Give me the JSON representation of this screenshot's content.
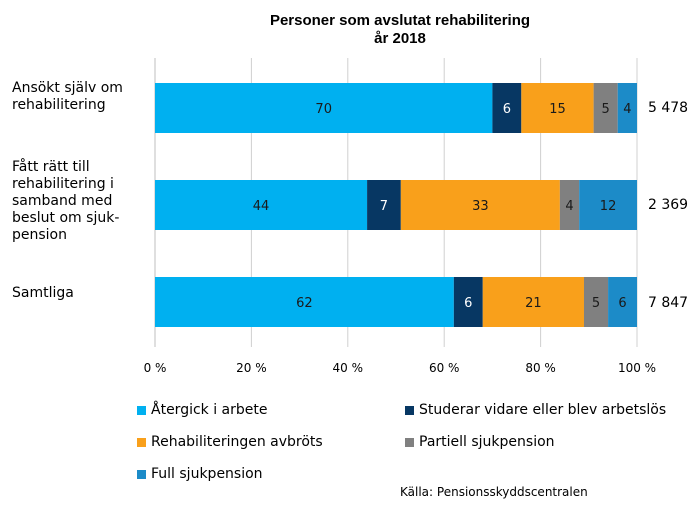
{
  "chart_data": {
    "type": "bar",
    "orientation": "horizontal-stacked",
    "title_line1": "Personer som avslutat rehabilitering",
    "title_line2": "år 2018",
    "categories": [
      {
        "lines": [
          "Ansökt själv om",
          "rehabilitering"
        ],
        "total": "5 478"
      },
      {
        "lines": [
          "Fått rätt till",
          "rehabilitering i",
          "samband med",
          "beslut om sjuk-",
          "pension"
        ],
        "total": "2 369"
      },
      {
        "lines": [
          "Samtliga"
        ],
        "total": "7 847"
      }
    ],
    "series": [
      {
        "name": "Återgick i arbete",
        "color": "#00B0F0",
        "label_color": "#1a1a1a",
        "values": [
          70,
          44,
          62
        ]
      },
      {
        "name": "Studerar vidare eller blev arbetslös",
        "color": "#073763",
        "label_color": "#ffffff",
        "values": [
          6,
          7,
          6
        ]
      },
      {
        "name": "Rehabiliteringen avbröts",
        "color": "#F9A01B",
        "label_color": "#1a1a1a",
        "values": [
          15,
          33,
          21
        ]
      },
      {
        "name": "Partiell sjukpension",
        "color": "#808080",
        "label_color": "#1a1a1a",
        "values": [
          5,
          4,
          5
        ]
      },
      {
        "name": "Full sjukpension",
        "color": "#1C8BC8",
        "label_color": "#1a1a1a",
        "values": [
          4,
          12,
          6
        ]
      }
    ],
    "xlim": [
      0,
      100
    ],
    "xticks": [
      "0 %",
      "20 %",
      "40 %",
      "60 %",
      "80 %",
      "100 %"
    ],
    "grid": true,
    "legend_position": "bottom"
  },
  "source": "Källa: Pensionsskyddscentralen"
}
